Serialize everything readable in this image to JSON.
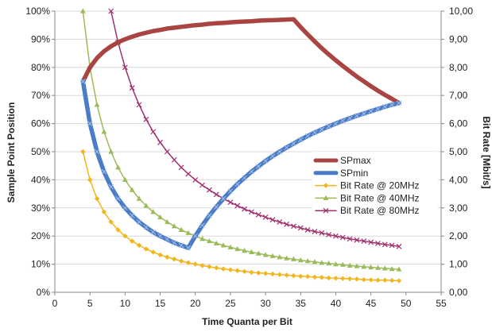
{
  "chart_data": {
    "type": "line",
    "xlabel": "Time Quanta per Bit",
    "ylabel": "Sample Point Position",
    "y2label": "Bit Rate [Mbit/s]",
    "xlim": [
      0,
      55
    ],
    "ylim": [
      0,
      100
    ],
    "y2lim": [
      0,
      10
    ],
    "x_ticks": [
      0,
      5,
      10,
      15,
      20,
      25,
      30,
      35,
      40,
      45,
      50,
      55
    ],
    "y_ticks": [
      "0%",
      "10%",
      "20%",
      "30%",
      "40%",
      "50%",
      "60%",
      "70%",
      "80%",
      "90%",
      "100%"
    ],
    "y2_ticks": [
      "0,00",
      "1,00",
      "2,00",
      "3,00",
      "4,00",
      "5,00",
      "6,00",
      "7,00",
      "8,00",
      "9,00",
      "10,00"
    ],
    "grid": "horizontal",
    "legend_position": "lower-right",
    "series": [
      {
        "name": "SPmax",
        "axis": "left",
        "unit": "%",
        "color": "#a94442",
        "x": [
          4,
          5,
          6,
          7,
          8,
          9,
          10,
          11,
          12,
          13,
          14,
          15,
          16,
          17,
          18,
          19,
          20,
          21,
          22,
          23,
          24,
          25,
          26,
          27,
          28,
          29,
          30,
          31,
          32,
          33,
          34,
          35,
          36,
          37,
          38,
          39,
          40,
          41,
          42,
          43,
          44,
          45,
          46,
          47,
          48,
          49
        ],
        "values": [
          75,
          80,
          83.3,
          85.7,
          87.5,
          88.9,
          90,
          90.9,
          91.7,
          92.3,
          92.9,
          93.3,
          93.8,
          94.1,
          94.4,
          94.7,
          95,
          95.2,
          95.5,
          95.7,
          95.8,
          96,
          96.2,
          96.3,
          96.4,
          96.6,
          96.7,
          96.8,
          96.9,
          97,
          97.1,
          94.3,
          91.7,
          89.2,
          86.8,
          84.6,
          82.5,
          80.5,
          78.6,
          76.7,
          75,
          73.3,
          71.7,
          70.2,
          68.8,
          67.3
        ]
      },
      {
        "name": "SPmin",
        "axis": "left",
        "unit": "%",
        "color": "#4a7cc7",
        "x": [
          4,
          5,
          6,
          7,
          8,
          9,
          10,
          11,
          12,
          13,
          14,
          15,
          16,
          17,
          18,
          19,
          20,
          21,
          22,
          23,
          24,
          25,
          26,
          27,
          28,
          29,
          30,
          31,
          32,
          33,
          34,
          35,
          36,
          37,
          38,
          39,
          40,
          41,
          42,
          43,
          44,
          45,
          46,
          47,
          48,
          49
        ],
        "values": [
          75,
          60,
          50,
          42.9,
          37.5,
          33.3,
          30,
          27.3,
          25,
          23.1,
          21.4,
          20,
          18.8,
          17.6,
          16.7,
          15.8,
          20,
          23.8,
          27.3,
          30.4,
          33.3,
          36,
          38.5,
          40.7,
          42.9,
          44.8,
          46.7,
          48.4,
          50,
          51.5,
          52.9,
          54.3,
          55.6,
          56.8,
          57.9,
          59,
          60,
          61,
          61.9,
          62.8,
          63.6,
          64.4,
          65.2,
          66,
          66.7,
          67.3
        ]
      },
      {
        "name": "Bit Rate @ 20MHz",
        "axis": "right",
        "unit": "Mbit/s",
        "color": "#f2b51b",
        "marker": "diamond",
        "x": [
          4,
          5,
          6,
          7,
          8,
          9,
          10,
          11,
          12,
          13,
          14,
          15,
          16,
          17,
          18,
          19,
          20,
          21,
          22,
          23,
          24,
          25,
          26,
          27,
          28,
          29,
          30,
          31,
          32,
          33,
          34,
          35,
          36,
          37,
          38,
          39,
          40,
          41,
          42,
          43,
          44,
          45,
          46,
          47,
          48,
          49
        ],
        "values": [
          5,
          4,
          3.33,
          2.86,
          2.5,
          2.22,
          2,
          1.82,
          1.67,
          1.54,
          1.43,
          1.33,
          1.25,
          1.18,
          1.11,
          1.05,
          1,
          0.95,
          0.91,
          0.87,
          0.83,
          0.8,
          0.77,
          0.74,
          0.71,
          0.69,
          0.67,
          0.65,
          0.63,
          0.61,
          0.59,
          0.57,
          0.56,
          0.54,
          0.53,
          0.51,
          0.5,
          0.49,
          0.48,
          0.47,
          0.45,
          0.44,
          0.43,
          0.43,
          0.42,
          0.41
        ]
      },
      {
        "name": "Bit Rate @ 40MHz",
        "axis": "right",
        "unit": "Mbit/s",
        "color": "#9bbb59",
        "marker": "triangle",
        "x": [
          4,
          5,
          6,
          7,
          8,
          9,
          10,
          11,
          12,
          13,
          14,
          15,
          16,
          17,
          18,
          19,
          20,
          21,
          22,
          23,
          24,
          25,
          26,
          27,
          28,
          29,
          30,
          31,
          32,
          33,
          34,
          35,
          36,
          37,
          38,
          39,
          40,
          41,
          42,
          43,
          44,
          45,
          46,
          47,
          48,
          49
        ],
        "values": [
          10,
          8,
          6.67,
          5.71,
          5,
          4.44,
          4,
          3.64,
          3.33,
          3.08,
          2.86,
          2.67,
          2.5,
          2.35,
          2.22,
          2.11,
          2,
          1.9,
          1.82,
          1.74,
          1.67,
          1.6,
          1.54,
          1.48,
          1.43,
          1.38,
          1.33,
          1.29,
          1.25,
          1.21,
          1.18,
          1.14,
          1.11,
          1.08,
          1.05,
          1.03,
          1,
          0.98,
          0.95,
          0.93,
          0.91,
          0.89,
          0.87,
          0.85,
          0.83,
          0.82
        ]
      },
      {
        "name": "Bit Rate @ 80MHz",
        "axis": "right",
        "unit": "Mbit/s",
        "color": "#a0306e",
        "marker": "x",
        "x": [
          8,
          9,
          10,
          11,
          12,
          13,
          14,
          15,
          16,
          17,
          18,
          19,
          20,
          21,
          22,
          23,
          24,
          25,
          26,
          27,
          28,
          29,
          30,
          31,
          32,
          33,
          34,
          35,
          36,
          37,
          38,
          39,
          40,
          41,
          42,
          43,
          44,
          45,
          46,
          47,
          48,
          49
        ],
        "values": [
          10,
          8.89,
          8,
          7.27,
          6.67,
          6.15,
          5.71,
          5.33,
          5,
          4.71,
          4.44,
          4.21,
          4,
          3.81,
          3.64,
          3.48,
          3.33,
          3.2,
          3.08,
          2.96,
          2.86,
          2.76,
          2.67,
          2.58,
          2.5,
          2.42,
          2.35,
          2.29,
          2.22,
          2.16,
          2.11,
          2.05,
          2,
          1.95,
          1.9,
          1.86,
          1.82,
          1.78,
          1.74,
          1.7,
          1.67,
          1.63
        ]
      }
    ]
  }
}
